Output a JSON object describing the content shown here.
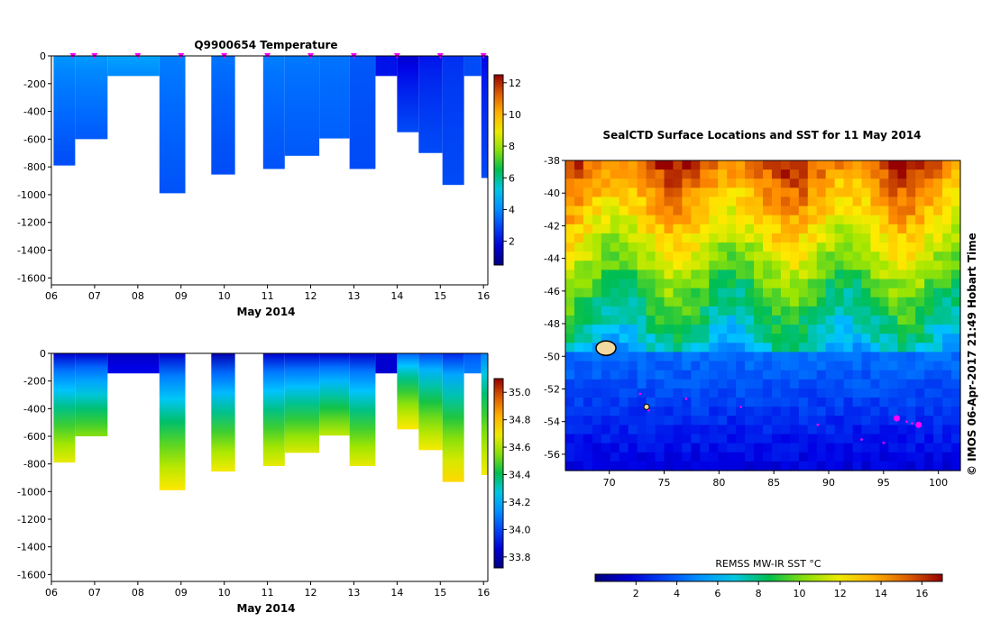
{
  "colors": {
    "background": "#ffffff",
    "float_marker": "#ff00ff",
    "track": "#ff00ff"
  },
  "chart_data": [
    {
      "type": "heatmap",
      "title": "Q9900654  Temperature",
      "xlabel": "May 2014",
      "ylabel": "",
      "xlim": [
        6.0,
        16.1
      ],
      "ylim": [
        -1650,
        0
      ],
      "x_ticks": [
        "06",
        "07",
        "08",
        "09",
        "10",
        "11",
        "12",
        "13",
        "14",
        "15",
        "16"
      ],
      "y_ticks": [
        0,
        -200,
        -400,
        -600,
        -800,
        -1000,
        -1200,
        -1400,
        -1600
      ],
      "colorbar": {
        "ticks": [
          2,
          4,
          6,
          8,
          10,
          12
        ],
        "range": [
          0.5,
          12.5
        ]
      },
      "markers_x": [
        6.5,
        7.0,
        8.0,
        9.0,
        10.0,
        11.0,
        12.0,
        13.0,
        14.0,
        15.0,
        16.0
      ],
      "profiles": [
        {
          "x0": 6.05,
          "x1": 6.55,
          "depth": 790,
          "surface": 4.2,
          "deep": 3.0
        },
        {
          "x0": 6.55,
          "x1": 7.3,
          "depth": 600,
          "surface": 4.3,
          "deep": 3.2
        },
        {
          "x0": 7.3,
          "x1": 8.5,
          "depth": 145,
          "surface": 4.5,
          "deep": 4.0
        },
        {
          "x0": 8.5,
          "x1": 9.1,
          "depth": 990,
          "surface": 3.8,
          "deep": 3.1
        },
        {
          "x0": 9.7,
          "x1": 10.25,
          "depth": 855,
          "surface": 3.6,
          "deep": 3.0
        },
        {
          "x0": 10.9,
          "x1": 11.4,
          "depth": 815,
          "surface": 3.8,
          "deep": 3.1
        },
        {
          "x0": 11.4,
          "x1": 12.2,
          "depth": 720,
          "surface": 3.7,
          "deep": 3.2
        },
        {
          "x0": 12.2,
          "x1": 12.9,
          "depth": 595,
          "surface": 3.6,
          "deep": 3.3
        },
        {
          "x0": 12.9,
          "x1": 13.5,
          "depth": 815,
          "surface": 3.2,
          "deep": 3.0
        },
        {
          "x0": 13.5,
          "x1": 14.0,
          "depth": 145,
          "surface": 2.2,
          "deep": 2.2
        },
        {
          "x0": 14.0,
          "x1": 14.5,
          "depth": 550,
          "surface": 1.6,
          "deep": 3.0
        },
        {
          "x0": 14.5,
          "x1": 15.05,
          "depth": 700,
          "surface": 2.2,
          "deep": 3.0
        },
        {
          "x0": 15.05,
          "x1": 15.55,
          "depth": 930,
          "surface": 2.6,
          "deep": 3.0
        },
        {
          "x0": 15.55,
          "x1": 15.95,
          "depth": 145,
          "surface": 3.0,
          "deep": 3.0
        },
        {
          "x0": 15.95,
          "x1": 16.1,
          "depth": 880,
          "surface": 2.0,
          "deep": 3.0
        }
      ]
    },
    {
      "type": "heatmap",
      "title": "",
      "xlabel": "May 2014",
      "ylabel": "",
      "xlim": [
        6.0,
        16.1
      ],
      "ylim": [
        -1650,
        0
      ],
      "x_ticks": [
        "06",
        "07",
        "08",
        "09",
        "10",
        "11",
        "12",
        "13",
        "14",
        "15",
        "16"
      ],
      "y_ticks": [
        0,
        -200,
        -400,
        -600,
        -800,
        -1000,
        -1200,
        -1400,
        -1600
      ],
      "colorbar": {
        "ticks": [
          33.8,
          34,
          34.2,
          34.4,
          34.6,
          34.8,
          35
        ],
        "range": [
          33.72,
          35.1
        ]
      },
      "profiles": [
        {
          "x0": 6.05,
          "x1": 6.55,
          "depth": 790,
          "surface": 33.85,
          "deep": 34.68
        },
        {
          "x0": 6.55,
          "x1": 7.3,
          "depth": 600,
          "surface": 33.85,
          "deep": 34.55
        },
        {
          "x0": 7.3,
          "x1": 8.5,
          "depth": 145,
          "surface": 33.82,
          "deep": 33.9
        },
        {
          "x0": 8.5,
          "x1": 9.1,
          "depth": 990,
          "surface": 33.85,
          "deep": 34.72
        },
        {
          "x0": 9.7,
          "x1": 10.25,
          "depth": 855,
          "surface": 33.8,
          "deep": 34.7
        },
        {
          "x0": 10.9,
          "x1": 11.4,
          "depth": 815,
          "surface": 33.85,
          "deep": 34.68
        },
        {
          "x0": 11.4,
          "x1": 12.2,
          "depth": 720,
          "surface": 33.85,
          "deep": 34.66
        },
        {
          "x0": 12.2,
          "x1": 12.9,
          "depth": 595,
          "surface": 33.85,
          "deep": 34.62
        },
        {
          "x0": 12.9,
          "x1": 13.5,
          "depth": 815,
          "surface": 33.85,
          "deep": 34.68
        },
        {
          "x0": 13.5,
          "x1": 14.0,
          "depth": 145,
          "surface": 33.85,
          "deep": 33.85
        },
        {
          "x0": 14.0,
          "x1": 14.5,
          "depth": 550,
          "surface": 34.05,
          "deep": 34.72
        },
        {
          "x0": 14.5,
          "x1": 15.05,
          "depth": 700,
          "surface": 34.0,
          "deep": 34.7
        },
        {
          "x0": 15.05,
          "x1": 15.55,
          "depth": 930,
          "surface": 33.95,
          "deep": 34.75
        },
        {
          "x0": 15.55,
          "x1": 15.95,
          "depth": 145,
          "surface": 34.0,
          "deep": 34.1
        },
        {
          "x0": 15.95,
          "x1": 16.1,
          "depth": 880,
          "surface": 34.1,
          "deep": 34.7
        }
      ]
    },
    {
      "type": "heatmap",
      "title": "SealCTD Surface Locations and SST for 11 May 2014",
      "xlabel": "",
      "ylabel": "",
      "xlim": [
        66,
        102
      ],
      "ylim": [
        -57,
        -38
      ],
      "x_ticks": [
        70,
        75,
        80,
        85,
        90,
        95,
        100
      ],
      "y_ticks": [
        -38,
        -40,
        -42,
        -44,
        -46,
        -48,
        -50,
        -52,
        -54,
        -56
      ],
      "colorbar": {
        "label": "REMSS MW-IR SST °C",
        "ticks": [
          2,
          4,
          6,
          8,
          10,
          12,
          14,
          16
        ],
        "range": [
          0,
          17
        ]
      },
      "side_note": "© IMOS 06-Apr-2017 21:49 Hobart Time",
      "track_points": [
        [
          72.8,
          -52.3
        ],
        [
          73.6,
          -53.3
        ],
        [
          77,
          -52.6
        ],
        [
          82,
          -53.1
        ],
        [
          89,
          -54.2
        ],
        [
          93,
          -55.1
        ],
        [
          95,
          -55.3
        ],
        [
          96.3,
          -53.9
        ],
        [
          97.1,
          -54.0
        ],
        [
          97.6,
          -54.1
        ],
        [
          98.1,
          -54.2
        ]
      ],
      "seal_locations": [
        [
          96.2,
          -53.8
        ],
        [
          98.2,
          -54.2
        ]
      ]
    }
  ]
}
